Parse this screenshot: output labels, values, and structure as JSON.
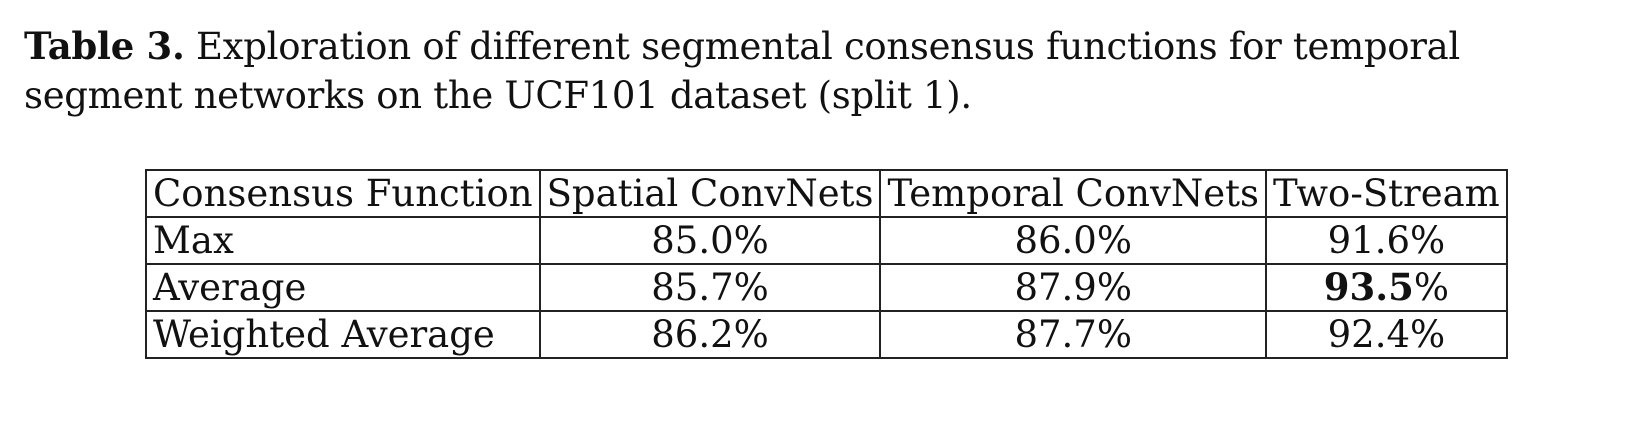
{
  "caption": {
    "label": "Table 3.",
    "text": " Exploration of different segmental consensus functions for temporal segment networks on the UCF101 dataset (split 1)."
  },
  "table": {
    "headers": [
      "Consensus Function",
      "Spatial ConvNets",
      "Temporal ConvNets",
      "Two-Stream"
    ],
    "rows": [
      {
        "name": "Max",
        "spatial": "85.0%",
        "temporal": "86.0%",
        "two_stream": "91.6%"
      },
      {
        "name": "Average",
        "spatial": "85.7%",
        "temporal": "87.9%",
        "two_stream_bold": "93.5",
        "two_stream_suffix": "%"
      },
      {
        "name": "Weighted Average",
        "spatial": "86.2%",
        "temporal": "87.7%",
        "two_stream": "92.4%"
      }
    ]
  }
}
